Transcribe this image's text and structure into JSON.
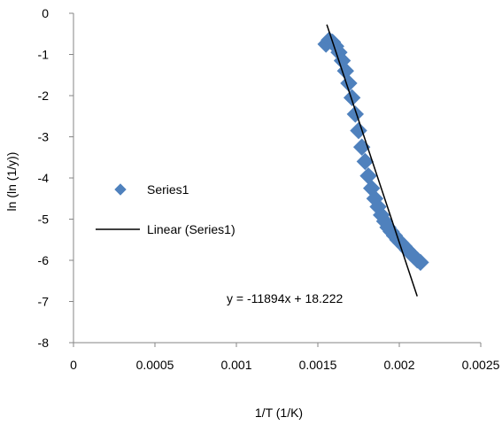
{
  "chart_data": {
    "type": "scatter",
    "title": "",
    "xlabel": "1/T (1/K)",
    "ylabel": "ln (ln (1/y))",
    "xlim": [
      0,
      0.0025
    ],
    "ylim": [
      -8,
      0
    ],
    "x_ticks": [
      0,
      0.0005,
      0.001,
      0.0015,
      0.002,
      0.0025
    ],
    "x_tick_labels": [
      "0",
      "0.0005",
      "0.001",
      "0.0015",
      "0.002",
      "0.0025"
    ],
    "y_ticks": [
      0,
      -1,
      -2,
      -3,
      -4,
      -5,
      -6,
      -7,
      -8
    ],
    "y_tick_labels": [
      "0",
      "-1",
      "-2",
      "-3",
      "-4",
      "-5",
      "-6",
      "-7",
      "-8"
    ],
    "grid": false,
    "legend_position": "left",
    "series": [
      {
        "name": "Series1",
        "marker": "diamond",
        "color": "#4f81bd",
        "x": [
          0.00155,
          0.00157,
          0.00159,
          0.00161,
          0.00163,
          0.00165,
          0.00167,
          0.00169,
          0.00171,
          0.00173,
          0.00175,
          0.00177,
          0.00179,
          0.00181,
          0.00183,
          0.00185,
          0.00187,
          0.00189,
          0.00191,
          0.00193,
          0.00195,
          0.00197,
          0.00199,
          0.00201,
          0.00203,
          0.00205,
          0.00207,
          0.00209,
          0.00211,
          0.00213
        ],
        "y": [
          -0.75,
          -0.65,
          -0.7,
          -0.8,
          -0.95,
          -1.15,
          -1.4,
          -1.7,
          -2.05,
          -2.45,
          -2.85,
          -3.25,
          -3.6,
          -3.95,
          -4.25,
          -4.5,
          -4.7,
          -4.9,
          -5.05,
          -5.2,
          -5.3,
          -5.4,
          -5.5,
          -5.58,
          -5.66,
          -5.75,
          -5.83,
          -5.91,
          -5.99,
          -6.05
        ]
      },
      {
        "name": "Linear (Series1)",
        "type": "trendline",
        "color": "#000000",
        "slope": -11894,
        "intercept": 18.222,
        "x_range": [
          0.001555,
          0.00211
        ]
      }
    ],
    "annotations": [
      {
        "text": "y = -11894x + 18.222"
      }
    ]
  }
}
